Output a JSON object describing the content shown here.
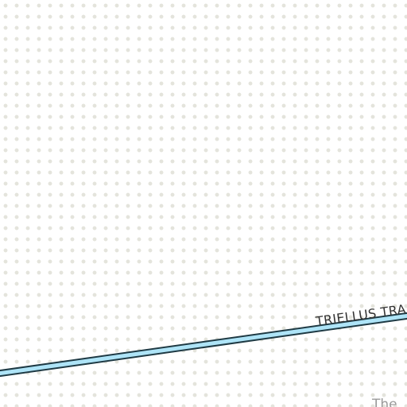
{
  "map": {
    "background_color": "#ffffff",
    "dot_color": "#e4e4dc",
    "road": {
      "name": "TRIELLUS TRA",
      "fill_color": "#aee4f7",
      "casing_color": "#1f3a44"
    },
    "corner_text": "The"
  }
}
